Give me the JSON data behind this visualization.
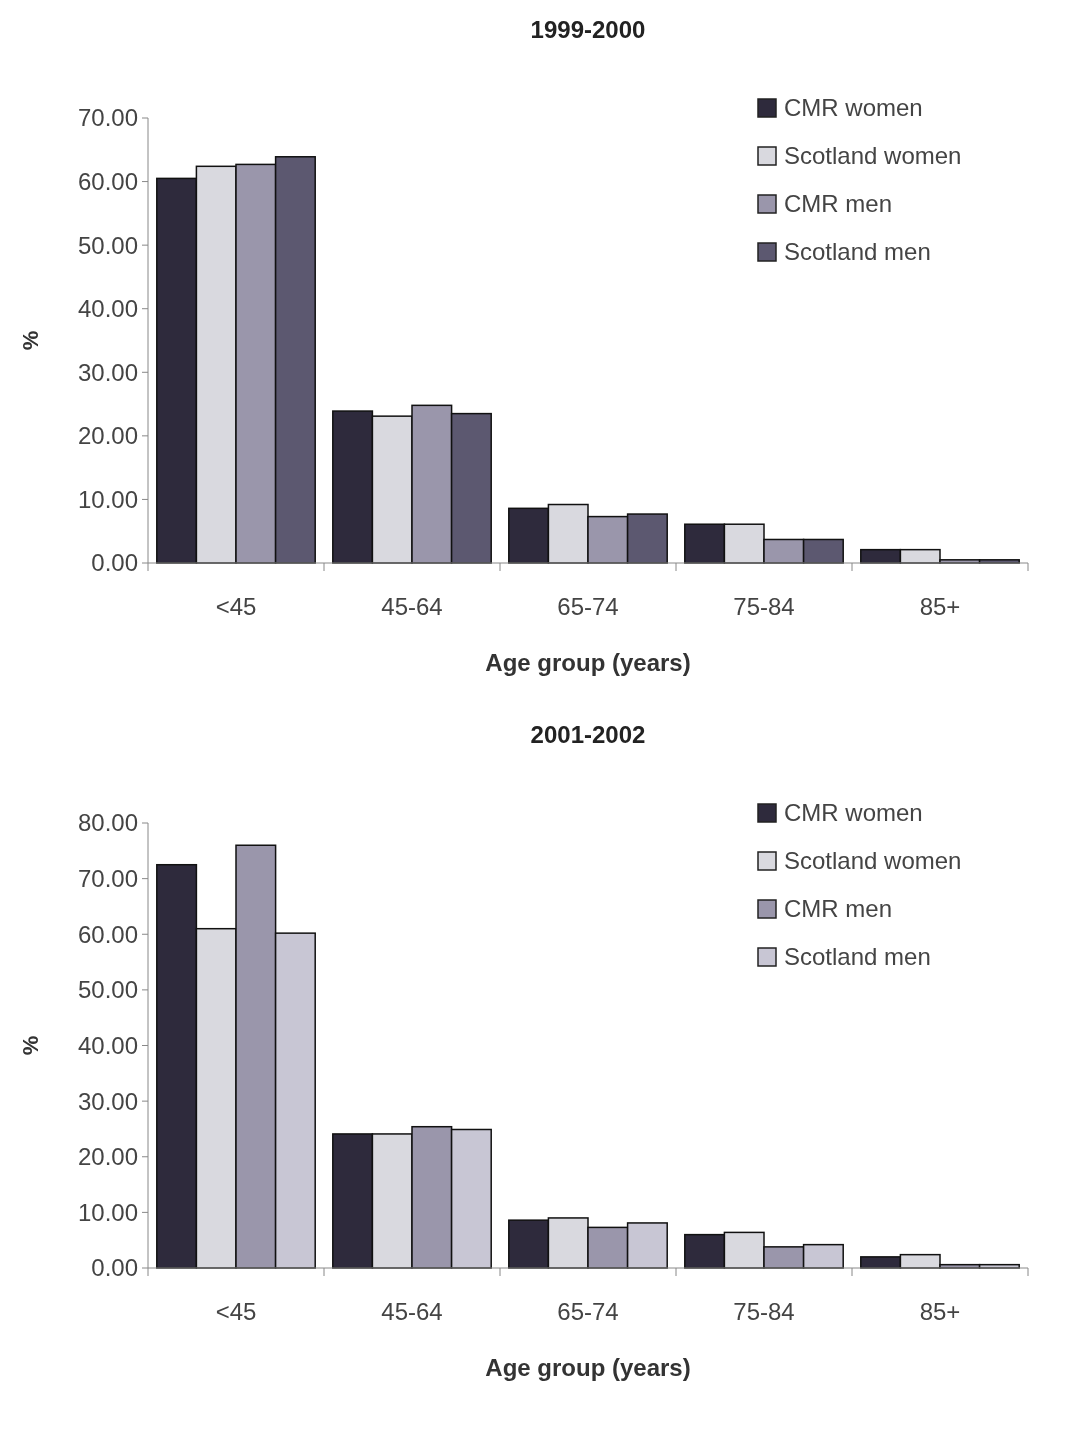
{
  "chart_data": [
    {
      "type": "bar",
      "title": "1999-2000",
      "xlabel": "Age group (years)",
      "ylabel": "%",
      "categories": [
        "<45",
        "45-64",
        "65-74",
        "75-84",
        "85+"
      ],
      "series": [
        {
          "name": "CMR women",
          "color": "#2e2a3c",
          "values": [
            60.5,
            23.9,
            8.6,
            6.1,
            2.1
          ]
        },
        {
          "name": "Scotland women",
          "color": "#d9d9df",
          "values": [
            62.4,
            23.1,
            9.2,
            6.1,
            2.1
          ]
        },
        {
          "name": "CMR men",
          "color": "#9a96ab",
          "values": [
            62.7,
            24.8,
            7.3,
            3.7,
            0.5
          ]
        },
        {
          "name": "Scotland men",
          "color": "#5c5870",
          "values": [
            63.9,
            23.5,
            7.7,
            3.7,
            0.5
          ]
        }
      ],
      "ylim": [
        0,
        70
      ],
      "yticks": [
        {
          "value": 0,
          "label": "0.00"
        },
        {
          "value": 10,
          "label": "10.00"
        },
        {
          "value": 20,
          "label": "20.00"
        },
        {
          "value": 30,
          "label": "30.00"
        },
        {
          "value": 40,
          "label": "40.00"
        },
        {
          "value": 50,
          "label": "50.00"
        },
        {
          "value": 60,
          "label": "60.00"
        },
        {
          "value": 70,
          "label": "70.00"
        }
      ],
      "grid": false,
      "legend": "top right"
    },
    {
      "type": "bar",
      "title": "2001-2002",
      "xlabel": "Age group (years)",
      "ylabel": "%",
      "categories": [
        "<45",
        "45-64",
        "65-74",
        "75-84",
        "85+"
      ],
      "series": [
        {
          "name": "CMR women",
          "color": "#2e2a3c",
          "values": [
            72.5,
            24.1,
            8.6,
            6.0,
            2.0
          ]
        },
        {
          "name": "Scotland women",
          "color": "#d9d9df",
          "values": [
            61.0,
            24.1,
            9.0,
            6.4,
            2.4
          ]
        },
        {
          "name": "CMR men",
          "color": "#9a96ab",
          "values": [
            76.0,
            25.4,
            7.3,
            3.8,
            0.6
          ]
        },
        {
          "name": "Scotland men",
          "color": "#c8c6d4",
          "values": [
            60.2,
            24.9,
            8.1,
            4.2,
            0.6
          ]
        }
      ],
      "ylim": [
        0,
        80
      ],
      "yticks": [
        {
          "value": 0,
          "label": "0.00"
        },
        {
          "value": 10,
          "label": "10.00"
        },
        {
          "value": 20,
          "label": "20.00"
        },
        {
          "value": 30,
          "label": "30.00"
        },
        {
          "value": 40,
          "label": "40.00"
        },
        {
          "value": 50,
          "label": "50.00"
        },
        {
          "value": 60,
          "label": "60.00"
        },
        {
          "value": 70,
          "label": "70.00"
        },
        {
          "value": 80,
          "label": "80.00"
        }
      ],
      "grid": false,
      "legend": "top right"
    }
  ]
}
